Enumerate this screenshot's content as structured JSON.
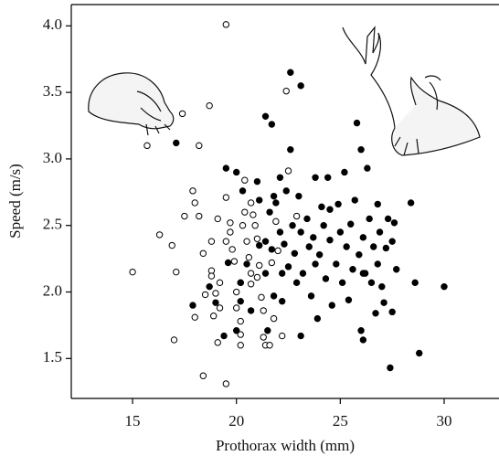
{
  "chart_data": {
    "type": "scatter",
    "x_label": "Prothorax width (mm)",
    "y_label": "Speed (m/s)",
    "xlim": [
      12.05,
      32.64
    ],
    "ylim": [
      1.2,
      4.16
    ],
    "xticks": [
      15,
      20,
      25,
      30
    ],
    "yticks": [
      {
        "value": 1.5,
        "label": "1.5"
      },
      {
        "value": 2,
        "label": "2.0"
      },
      2.5,
      {
        "value": 3,
        "label": "3.0"
      },
      3.5,
      {
        "value": 4,
        "label": "4.0"
      }
    ],
    "series": [
      {
        "color": "#000000",
        "marker": "open",
        "x": [
          15.0,
          15.7,
          16.3,
          16.9,
          17.1,
          17.0,
          17.4,
          17.5,
          17.9,
          18.0,
          18.2,
          18.2,
          18.0,
          18.4,
          18.4,
          18.7,
          18.8,
          18.8,
          18.8,
          18.9,
          19.1,
          19.5,
          19.5,
          19.5,
          19.7,
          19.8,
          19.9,
          20.0,
          20.0,
          20.2,
          20.2,
          20.2,
          20.4,
          20.3,
          20.4,
          20.5,
          20.6,
          20.7,
          20.7,
          20.7,
          20.8,
          20.9,
          21.0,
          21.1,
          21.2,
          21.3,
          21.3,
          21.4,
          21.6,
          21.7,
          21.8,
          21.9,
          22.0,
          22.2,
          22.4,
          22.5,
          22.9,
          19.1,
          19.0,
          19.2,
          18.5,
          19.2,
          20.2,
          19.5,
          19.7,
          21.0
        ],
        "y": [
          2.15,
          3.1,
          2.43,
          2.35,
          2.15,
          1.64,
          3.34,
          2.57,
          2.76,
          2.67,
          3.1,
          2.57,
          1.81,
          2.29,
          1.37,
          3.4,
          2.38,
          2.16,
          2.12,
          1.82,
          1.62,
          1.31,
          4.01,
          2.71,
          2.45,
          2.32,
          2.23,
          2.0,
          1.88,
          1.78,
          1.68,
          1.6,
          2.84,
          2.5,
          2.6,
          2.38,
          2.26,
          2.14,
          2.06,
          2.67,
          2.58,
          2.5,
          2.4,
          2.2,
          1.96,
          1.86,
          1.66,
          1.6,
          1.6,
          2.22,
          1.8,
          2.53,
          2.31,
          1.67,
          3.51,
          2.91,
          2.57,
          2.55,
          1.99,
          1.88,
          1.98,
          2.07,
          2.07,
          2.38,
          2.52,
          2.11
        ]
      },
      {
        "color": "#000000",
        "marker": "filled",
        "x": [
          17.1,
          19.5,
          20.0,
          20.3,
          21.4,
          21.7,
          22.6,
          23.1,
          22.6,
          17.9,
          18.7,
          19.4,
          20.0,
          20.2,
          21.0,
          21.1,
          21.4,
          21.4,
          21.5,
          21.6,
          21.7,
          21.8,
          21.9,
          22.1,
          22.1,
          22.2,
          22.2,
          22.3,
          22.4,
          22.5,
          22.7,
          22.8,
          22.9,
          23.0,
          23.1,
          23.1,
          23.2,
          23.4,
          23.5,
          23.6,
          23.7,
          23.8,
          23.9,
          24.0,
          24.1,
          24.2,
          24.3,
          24.4,
          24.5,
          24.6,
          24.8,
          24.9,
          25.0,
          25.1,
          25.2,
          25.3,
          25.4,
          25.5,
          25.6,
          25.7,
          25.8,
          25.9,
          26.0,
          26.1,
          26.1,
          26.0,
          26.2,
          26.3,
          26.4,
          26.5,
          26.6,
          26.7,
          26.8,
          26.8,
          26.9,
          27.1,
          27.2,
          27.3,
          27.4,
          27.5,
          27.5,
          27.6,
          27.7,
          27.0,
          28.4,
          28.6,
          28.8,
          30.0,
          23.8,
          24.5,
          26.1,
          20.2,
          20.7,
          19.0,
          20.5,
          21.8,
          21.1,
          19.6
        ],
        "y": [
          3.12,
          2.93,
          2.9,
          2.76,
          3.32,
          3.26,
          3.65,
          3.55,
          3.07,
          1.9,
          2.04,
          1.67,
          1.71,
          2.07,
          2.83,
          2.69,
          2.38,
          2.14,
          1.71,
          2.6,
          2.32,
          2.72,
          2.67,
          2.86,
          2.45,
          2.14,
          1.93,
          2.36,
          2.76,
          2.19,
          2.5,
          2.29,
          2.07,
          2.72,
          1.67,
          2.45,
          2.14,
          2.55,
          2.34,
          1.97,
          2.41,
          2.21,
          1.8,
          2.28,
          2.64,
          2.5,
          2.1,
          2.86,
          2.39,
          1.9,
          2.21,
          2.66,
          2.45,
          2.07,
          2.9,
          2.34,
          1.94,
          2.51,
          2.17,
          2.69,
          3.27,
          2.28,
          1.71,
          2.41,
          1.64,
          3.07,
          2.14,
          2.93,
          2.55,
          2.07,
          2.34,
          1.84,
          2.66,
          2.21,
          2.45,
          1.92,
          2.33,
          2.55,
          1.43,
          1.85,
          2.38,
          2.52,
          2.17,
          2.04,
          2.67,
          2.07,
          1.54,
          2.04,
          2.86,
          2.62,
          2.14,
          1.93,
          1.86,
          1.92,
          2.21,
          1.97,
          2.35,
          2.22
        ]
      }
    ]
  }
}
